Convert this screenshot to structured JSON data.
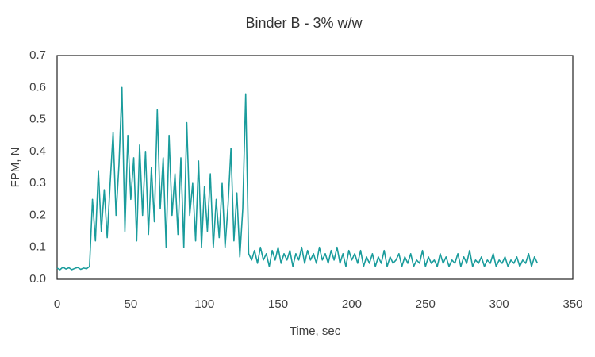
{
  "chart_data": {
    "type": "line",
    "title": "Binder B - 3% w/w",
    "xlabel": "Time, sec",
    "ylabel": "FPM, N",
    "xlim": [
      0,
      350
    ],
    "xticks": [
      0,
      50,
      100,
      150,
      200,
      250,
      300,
      350
    ],
    "ylim": [
      0,
      0.7
    ],
    "yticks": [
      {
        "value": 0,
        "label": "0.0"
      },
      0.1,
      0.2,
      0.3,
      0.4,
      0.5,
      0.6,
      0.7
    ],
    "grid": false,
    "x": [
      0,
      2,
      4,
      6,
      8,
      10,
      12,
      14,
      16,
      18,
      20,
      22,
      24,
      26,
      28,
      30,
      32,
      34,
      36,
      38,
      40,
      42,
      44,
      46,
      48,
      50,
      52,
      54,
      56,
      58,
      60,
      62,
      64,
      66,
      68,
      70,
      72,
      74,
      76,
      78,
      80,
      82,
      84,
      86,
      88,
      90,
      92,
      94,
      96,
      98,
      100,
      102,
      104,
      106,
      108,
      110,
      112,
      114,
      116,
      118,
      120,
      122,
      124,
      126,
      128,
      130,
      132,
      134,
      136,
      138,
      140,
      142,
      144,
      146,
      148,
      150,
      152,
      154,
      156,
      158,
      160,
      162,
      164,
      166,
      168,
      170,
      172,
      174,
      176,
      178,
      180,
      182,
      184,
      186,
      188,
      190,
      192,
      194,
      196,
      198,
      200,
      202,
      204,
      206,
      208,
      210,
      212,
      214,
      216,
      218,
      220,
      222,
      224,
      226,
      228,
      230,
      232,
      234,
      236,
      238,
      240,
      242,
      244,
      246,
      248,
      250,
      252,
      254,
      256,
      258,
      260,
      262,
      264,
      266,
      268,
      270,
      272,
      274,
      276,
      278,
      280,
      282,
      284,
      286,
      288,
      290,
      292,
      294,
      296,
      298,
      300,
      302,
      304,
      306,
      308,
      310,
      312,
      314,
      316,
      318,
      320,
      322,
      324,
      326
    ],
    "series": [
      {
        "name": "FPM",
        "color": "#1a9c9c",
        "values": [
          0.035,
          0.03,
          0.038,
          0.032,
          0.036,
          0.03,
          0.034,
          0.037,
          0.031,
          0.035,
          0.033,
          0.04,
          0.25,
          0.12,
          0.34,
          0.15,
          0.28,
          0.13,
          0.3,
          0.46,
          0.2,
          0.36,
          0.6,
          0.15,
          0.45,
          0.25,
          0.38,
          0.12,
          0.42,
          0.2,
          0.4,
          0.14,
          0.35,
          0.18,
          0.53,
          0.22,
          0.38,
          0.1,
          0.45,
          0.2,
          0.33,
          0.14,
          0.38,
          0.1,
          0.49,
          0.2,
          0.3,
          0.12,
          0.37,
          0.1,
          0.29,
          0.15,
          0.33,
          0.1,
          0.25,
          0.13,
          0.3,
          0.1,
          0.23,
          0.41,
          0.12,
          0.27,
          0.07,
          0.22,
          0.58,
          0.08,
          0.06,
          0.09,
          0.05,
          0.1,
          0.06,
          0.08,
          0.04,
          0.09,
          0.06,
          0.1,
          0.05,
          0.08,
          0.06,
          0.09,
          0.04,
          0.08,
          0.06,
          0.1,
          0.05,
          0.09,
          0.06,
          0.08,
          0.05,
          0.1,
          0.06,
          0.08,
          0.05,
          0.09,
          0.06,
          0.1,
          0.05,
          0.08,
          0.04,
          0.09,
          0.06,
          0.08,
          0.05,
          0.09,
          0.04,
          0.07,
          0.05,
          0.08,
          0.04,
          0.07,
          0.05,
          0.09,
          0.04,
          0.07,
          0.05,
          0.06,
          0.08,
          0.04,
          0.07,
          0.05,
          0.08,
          0.04,
          0.06,
          0.05,
          0.09,
          0.04,
          0.07,
          0.05,
          0.06,
          0.04,
          0.08,
          0.05,
          0.07,
          0.04,
          0.06,
          0.05,
          0.08,
          0.04,
          0.07,
          0.05,
          0.09,
          0.04,
          0.06,
          0.05,
          0.07,
          0.04,
          0.06,
          0.05,
          0.08,
          0.04,
          0.06,
          0.05,
          0.07,
          0.04,
          0.06,
          0.05,
          0.07,
          0.04,
          0.06,
          0.05,
          0.08,
          0.04,
          0.07,
          0.05
        ]
      }
    ]
  }
}
